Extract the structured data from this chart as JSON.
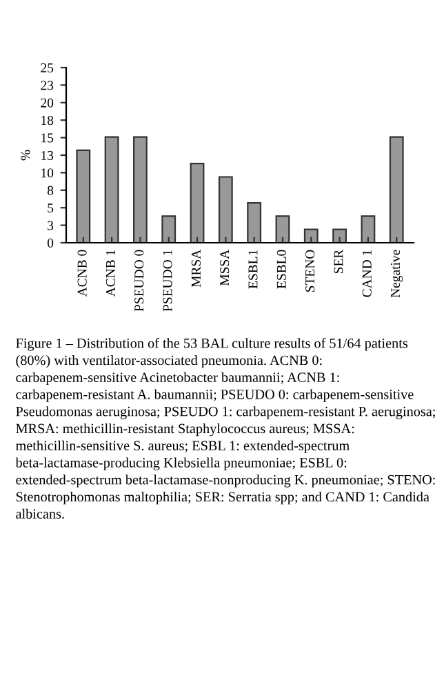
{
  "chart_data": {
    "type": "bar",
    "ylabel": "%",
    "categories": [
      "ACNB 0",
      "ACNB 1",
      "PSEUDO 0",
      "PSEUDO 1",
      "MRSA",
      "MSSA",
      "ESBL1",
      "ESBL0",
      "STENO",
      "SER",
      "CAND 1",
      "Negative"
    ],
    "values": [
      13.2,
      15.1,
      15.1,
      3.8,
      11.3,
      9.4,
      5.7,
      3.8,
      1.9,
      1.9,
      3.8,
      15.1
    ],
    "color": "#999999",
    "ylim": [
      0,
      25
    ],
    "yticks": [
      0,
      {
        "value": 2.5,
        "label": "3"
      },
      5,
      {
        "value": 7.5,
        "label": "8"
      },
      10,
      {
        "value": 12.5,
        "label": "13"
      },
      15,
      {
        "value": 17.5,
        "label": "18"
      },
      20,
      {
        "value": 22.5,
        "label": "23"
      },
      25
    ],
    "grid": false,
    "legend": false,
    "annotations": [
      "Figure 1 – Distribution of the 53 BAL culture results of 51/64 patients (80%) with ventilator-associated pneumonia. ACNB 0: carbapenem-sensitive Acinetobacter baumannii; ACNB 1: carbapenem-resistant A. baumannii; PSEUDO 0: carbapenem-sensitive Pseudomonas aeruginosa; PSEUDO 1: carbapenem-resistant P. aeruginosa; MRSA: methicillin-resistant Staphylococcus aureus; MSSA: methicillin-sensitive S. aureus; ESBL 1: extended-spectrum beta-lactamase-producing Klebsiella pneumoniae; ESBL 0: extended-spectrum beta-lactamase-nonproducing K. pneumoniae; STENO: Stenotrophomonas maltophilia; SER: Serratia spp; and CAND 1: Candida albicans."
    ]
  }
}
